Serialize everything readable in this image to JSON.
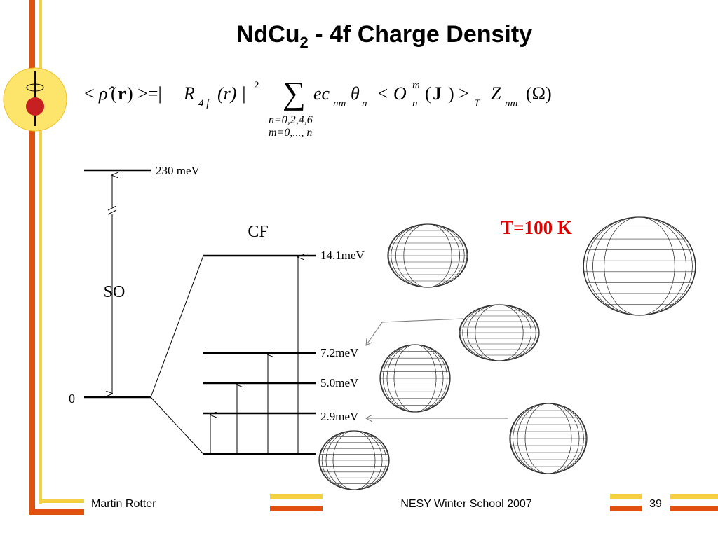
{
  "header": {
    "title_main": "NdCu",
    "title_sub": "2",
    "title_rest": " - 4f Charge Density"
  },
  "formula": {
    "parts": [
      "<",
      "ρ̂",
      "(",
      "r",
      ") >=|",
      "R",
      "4 f",
      "(r) |",
      "2",
      "∑",
      "ec",
      "nm",
      "θ",
      "n",
      "< O",
      "m",
      "n",
      "(",
      "J",
      ") >",
      "T",
      "Z",
      "nm",
      "(Ω)"
    ],
    "limits": [
      "n=0,2,4,6",
      "m=0,..., n"
    ]
  },
  "diagram": {
    "top_level": "230 meV",
    "so": "SO",
    "ground": "0",
    "cf": "CF",
    "levels": [
      "14.1meV",
      "7.2meV",
      "5.0meV",
      "2.9meV"
    ],
    "temperature": "T=100 K"
  },
  "footer": {
    "author": "Martin Rotter",
    "event": "NESY Winter School 2007",
    "page": "39"
  }
}
